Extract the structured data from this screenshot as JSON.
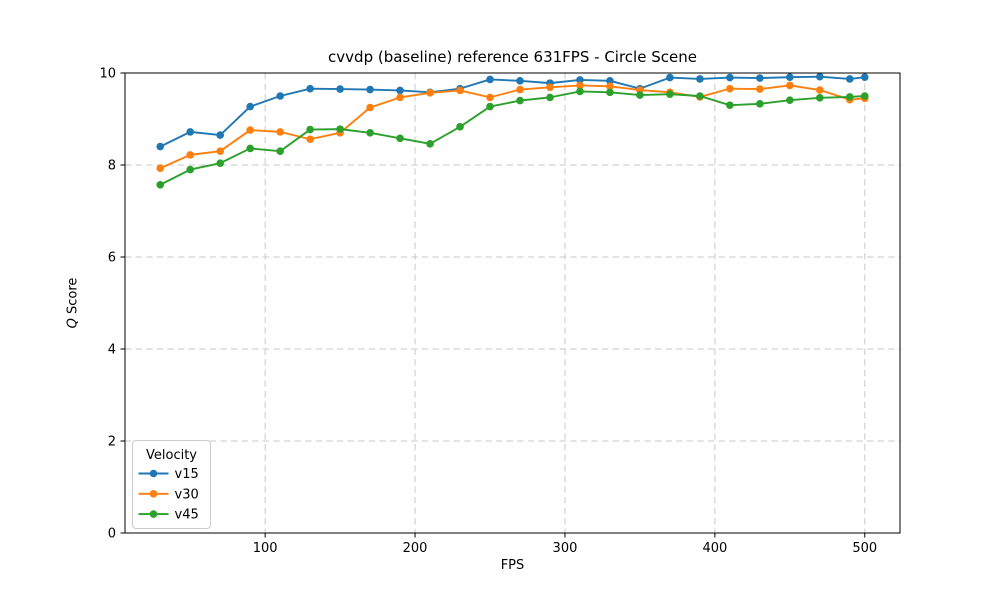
{
  "chart_data": {
    "type": "line",
    "title": "cvvdp (baseline) reference 631FPS - Circle Scene",
    "xlabel": "FPS",
    "ylabel": "Q Score",
    "xlim": [
      6.5,
      523.5
    ],
    "ylim": [
      0,
      10
    ],
    "x_ticks": [
      100,
      200,
      300,
      400,
      500
    ],
    "y_ticks": [
      0,
      2,
      4,
      6,
      8,
      10
    ],
    "grid": true,
    "grid_style": "dashed",
    "marker": "circle",
    "legend": {
      "title": "Velocity",
      "position": "lower-left"
    },
    "x": [
      30,
      50,
      70,
      90,
      110,
      130,
      150,
      170,
      190,
      210,
      230,
      250,
      270,
      290,
      310,
      330,
      350,
      370,
      390,
      410,
      430,
      450,
      470,
      490,
      500
    ],
    "series": [
      {
        "name": "v15",
        "color": "#1f77b4",
        "values": [
          8.4,
          8.72,
          8.65,
          9.27,
          9.5,
          9.66,
          9.65,
          9.64,
          9.62,
          9.58,
          9.66,
          9.86,
          9.83,
          9.78,
          9.85,
          9.83,
          9.66,
          9.9,
          9.87,
          9.9,
          9.89,
          9.91,
          9.92,
          9.87,
          9.91
        ]
      },
      {
        "name": "v30",
        "color": "#ff7f0e",
        "values": [
          7.93,
          8.22,
          8.3,
          8.76,
          8.72,
          8.56,
          8.7,
          9.25,
          9.47,
          9.57,
          9.62,
          9.47,
          9.64,
          9.69,
          9.73,
          9.71,
          9.63,
          9.58,
          9.48,
          9.66,
          9.65,
          9.73,
          9.63,
          9.42,
          9.45
        ]
      },
      {
        "name": "v45",
        "color": "#2ca02c",
        "values": [
          7.57,
          7.9,
          8.04,
          8.36,
          8.3,
          8.77,
          8.78,
          8.7,
          8.58,
          8.46,
          8.83,
          9.27,
          9.4,
          9.47,
          9.6,
          9.58,
          9.52,
          9.54,
          9.5,
          9.3,
          9.33,
          9.41,
          9.46,
          9.48,
          9.5
        ]
      }
    ]
  }
}
